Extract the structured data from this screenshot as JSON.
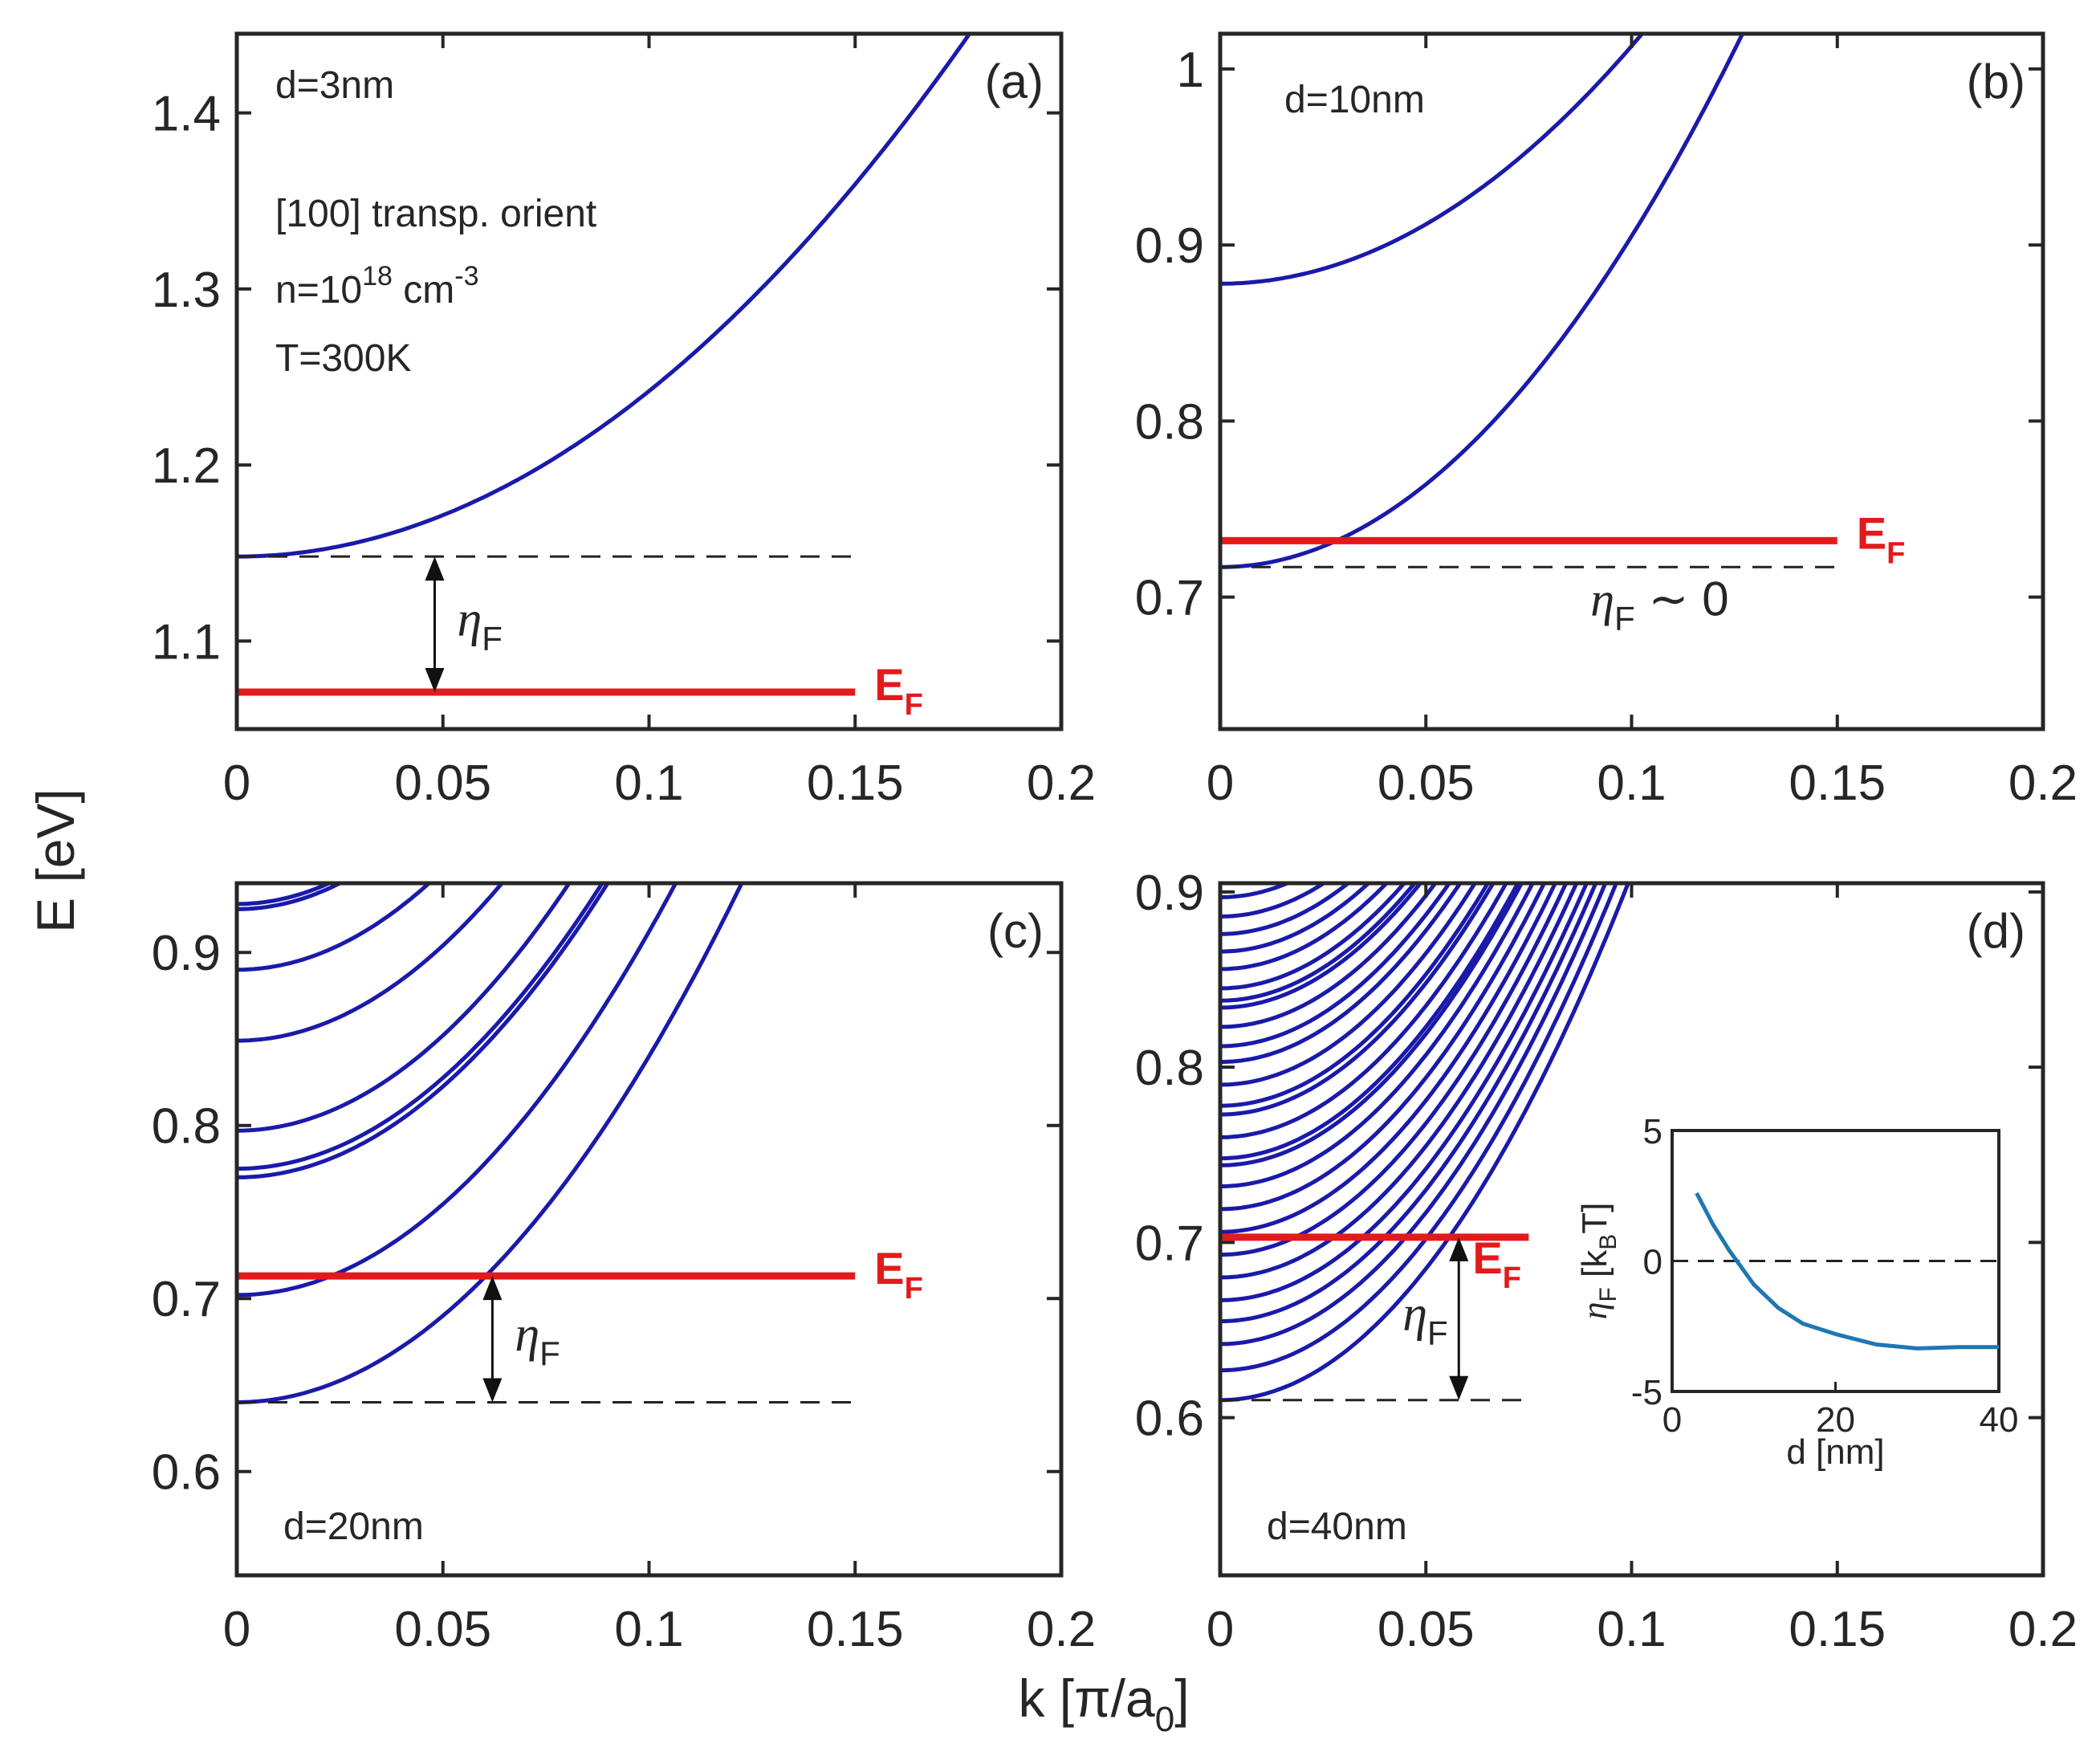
{
  "colors": {
    "band": "#1a1aaa",
    "fermi": "#e31a1c",
    "inset": "#1f77b4",
    "axis": "#262626"
  },
  "figure": {
    "ylabel": "E [eV]",
    "xlabel_main": "k [π/a",
    "xlabel_sub": "0",
    "xlabel_close": "]"
  },
  "chart_data": [
    {
      "type": "line",
      "id": "a",
      "panel_label": "(a)",
      "xlim": [
        0,
        0.2
      ],
      "ylim": [
        1.05,
        1.445
      ],
      "xticks": [
        0,
        0.05,
        0.1,
        0.15,
        0.2
      ],
      "xtick_labels": [
        "0",
        "0.05",
        "0.1",
        "0.15",
        "0.2"
      ],
      "yticks": [
        1.1,
        1.2,
        1.3,
        1.4
      ],
      "ytick_labels": [
        "1.1",
        "1.2",
        "1.3",
        "1.4"
      ],
      "annotations": [
        "d=3nm",
        "[100] transp. orient",
        "T=300K"
      ],
      "density": {
        "prefix": "n=10",
        "exp": "18",
        "unit": " cm",
        "unit_exp": "-3"
      },
      "bands": [
        {
          "e0": 1.148,
          "curv": 9.4
        }
      ],
      "fermi": {
        "E": 1.071,
        "x_end": 0.15,
        "label": "E",
        "sub": "F"
      },
      "edge": {
        "E": 1.148,
        "x_end": 0.15
      },
      "eta": {
        "x": 0.048,
        "label": "η",
        "sub": "F"
      }
    },
    {
      "type": "line",
      "id": "b",
      "panel_label": "(b)",
      "xlim": [
        0,
        0.2
      ],
      "ylim": [
        0.625,
        1.02
      ],
      "xticks": [
        0,
        0.05,
        0.1,
        0.15,
        0.2
      ],
      "xtick_labels": [
        "0",
        "0.05",
        "0.1",
        "0.15",
        "0.2"
      ],
      "yticks": [
        0.7,
        0.8,
        0.9,
        1.0
      ],
      "ytick_labels": [
        "0.7",
        "0.8",
        "0.9",
        "1"
      ],
      "annotations": [
        "d=10nm"
      ],
      "bands": [
        {
          "e0": 0.717,
          "curv": 18.8
        },
        {
          "e0": 0.878,
          "curv": 13.5
        }
      ],
      "fermi": {
        "E": 0.732,
        "x_end": 0.15,
        "label": "E",
        "sub": "F"
      },
      "edge": {
        "E": 0.717,
        "x_end": 0.15
      },
      "eta_text": {
        "label": "η",
        "sub": "F",
        "tail": "∼ 0"
      }
    },
    {
      "type": "line",
      "id": "c",
      "panel_label": "(c)",
      "xlim": [
        0,
        0.2
      ],
      "ylim": [
        0.54,
        0.94
      ],
      "xticks": [
        0,
        0.05,
        0.1,
        0.15,
        0.2
      ],
      "xtick_labels": [
        "0",
        "0.05",
        "0.1",
        "0.15",
        "0.2"
      ],
      "yticks": [
        0.6,
        0.7,
        0.8,
        0.9
      ],
      "ytick_labels": [
        "0.6",
        "0.7",
        "0.8",
        "0.9"
      ],
      "annotations": [
        "d=20nm"
      ],
      "bands": [
        {
          "e0": 0.64,
          "curv": 20
        },
        {
          "e0": 0.702,
          "curv": 21
        },
        {
          "e0": 0.77,
          "curv": 21
        },
        {
          "e0": 0.775,
          "curv": 21
        },
        {
          "e0": 0.797,
          "curv": 22
        },
        {
          "e0": 0.849,
          "curv": 22
        },
        {
          "e0": 0.89,
          "curv": 23
        },
        {
          "e0": 0.925,
          "curv": 24
        },
        {
          "e0": 0.928,
          "curv": 24
        }
      ],
      "fermi": {
        "E": 0.713,
        "x_end": 0.15,
        "label": "E",
        "sub": "F"
      },
      "edge": {
        "E": 0.64,
        "x_end": 0.15
      },
      "eta": {
        "x": 0.062,
        "label": "η",
        "sub": "F"
      }
    },
    {
      "type": "line",
      "id": "d",
      "panel_label": "(d)",
      "xlim": [
        0,
        0.2
      ],
      "ylim": [
        0.51,
        0.905
      ],
      "xticks": [
        0,
        0.05,
        0.1,
        0.15,
        0.2
      ],
      "xtick_labels": [
        "0",
        "0.05",
        "0.1",
        "0.15",
        "0.2"
      ],
      "yticks": [
        0.6,
        0.7,
        0.8,
        0.9
      ],
      "ytick_labels": [
        "0.6",
        "0.7",
        "0.8",
        "0.9"
      ],
      "annotations": [
        "d=40nm"
      ],
      "bands": [
        {
          "e0": 0.61,
          "curv": 30
        },
        {
          "e0": 0.627,
          "curv": 30
        },
        {
          "e0": 0.642,
          "curv": 30
        },
        {
          "e0": 0.655,
          "curv": 30
        },
        {
          "e0": 0.667,
          "curv": 30
        },
        {
          "e0": 0.68,
          "curv": 30
        },
        {
          "e0": 0.693,
          "curv": 30
        },
        {
          "e0": 0.706,
          "curv": 30
        },
        {
          "e0": 0.719,
          "curv": 30
        },
        {
          "e0": 0.732,
          "curv": 30
        },
        {
          "e0": 0.744,
          "curv": 30
        },
        {
          "e0": 0.748,
          "curv": 30
        },
        {
          "e0": 0.76,
          "curv": 30
        },
        {
          "e0": 0.773,
          "curv": 30
        },
        {
          "e0": 0.778,
          "curv": 30
        },
        {
          "e0": 0.79,
          "curv": 30
        },
        {
          "e0": 0.803,
          "curv": 30
        },
        {
          "e0": 0.812,
          "curv": 30
        },
        {
          "e0": 0.823,
          "curv": 30
        },
        {
          "e0": 0.834,
          "curv": 30
        },
        {
          "e0": 0.838,
          "curv": 30
        },
        {
          "e0": 0.845,
          "curv": 30
        },
        {
          "e0": 0.856,
          "curv": 30
        },
        {
          "e0": 0.866,
          "curv": 30
        },
        {
          "e0": 0.876,
          "curv": 30
        },
        {
          "e0": 0.886,
          "curv": 30
        },
        {
          "e0": 0.897,
          "curv": 30
        }
      ],
      "fermi": {
        "E": 0.703,
        "x_end": 0.075,
        "label": "E",
        "sub": "F"
      },
      "edge": {
        "E": 0.61,
        "x_end": 0.075
      },
      "eta": {
        "x": 0.058,
        "label": "η",
        "sub": "F"
      }
    },
    {
      "type": "line",
      "id": "inset",
      "inset": true,
      "xlim": [
        0,
        40
      ],
      "ylim": [
        -5,
        5
      ],
      "xticks": [
        0,
        20,
        40
      ],
      "xtick_labels": [
        "0",
        "20",
        "40"
      ],
      "yticks": [
        -5,
        0,
        5
      ],
      "ytick_labels": [
        "-5",
        "0",
        "5"
      ],
      "xlabel": "d [nm]",
      "ylabel": {
        "eta": "η",
        "sub": "F",
        "unit": " [k",
        "unit_sub": "B",
        "unit_tail": "T]"
      },
      "reference_line": 0,
      "series": [
        {
          "x": [
            3,
            5,
            7,
            10,
            13,
            16,
            20,
            25,
            30,
            35,
            40
          ],
          "y": [
            2.6,
            1.4,
            0.4,
            -0.9,
            -1.8,
            -2.4,
            -2.8,
            -3.2,
            -3.35,
            -3.3,
            -3.3
          ]
        }
      ]
    }
  ]
}
